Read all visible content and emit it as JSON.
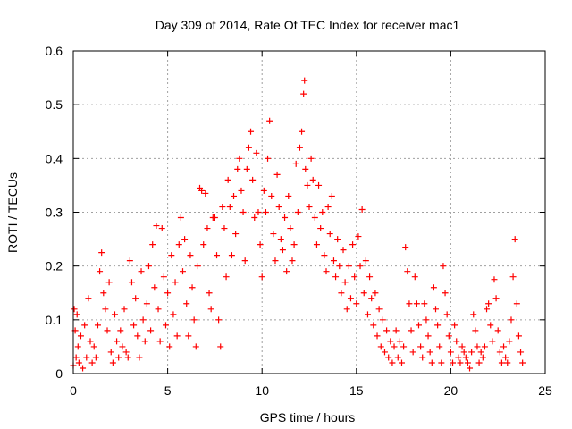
{
  "chart_data": {
    "type": "scatter",
    "title": "Day 309 of 2014, Rate Of TEC Index for receiver mac1",
    "xlabel": "GPS time / hours",
    "ylabel": "ROTI / TECUs",
    "xlim": [
      0,
      25
    ],
    "ylim": [
      0,
      0.6
    ],
    "xticks": [
      "0",
      "5",
      "10",
      "15",
      "20",
      "25"
    ],
    "yticks": [
      "0",
      "0.1",
      "0.2",
      "0.3",
      "0.4",
      "0.5",
      "0.6"
    ],
    "grid": true,
    "marker": "+",
    "color": "#ff0000",
    "series": [
      {
        "points": [
          [
            0.0,
            0.015
          ],
          [
            0.05,
            0.12
          ],
          [
            0.1,
            0.08
          ],
          [
            0.15,
            0.03
          ],
          [
            0.2,
            0.11
          ],
          [
            0.25,
            0.05
          ],
          [
            0.3,
            0.02
          ],
          [
            0.4,
            0.07
          ],
          [
            0.5,
            0.01
          ],
          [
            0.6,
            0.09
          ],
          [
            0.7,
            0.03
          ],
          [
            0.8,
            0.14
          ],
          [
            0.9,
            0.06
          ],
          [
            1.0,
            0.02
          ],
          [
            1.1,
            0.05
          ],
          [
            1.2,
            0.03
          ],
          [
            1.3,
            0.09
          ],
          [
            1.4,
            0.19
          ],
          [
            1.5,
            0.225
          ],
          [
            1.6,
            0.15
          ],
          [
            1.7,
            0.12
          ],
          [
            1.8,
            0.08
          ],
          [
            1.9,
            0.17
          ],
          [
            2.0,
            0.04
          ],
          [
            2.1,
            0.02
          ],
          [
            2.2,
            0.11
          ],
          [
            2.3,
            0.06
          ],
          [
            2.4,
            0.03
          ],
          [
            2.5,
            0.08
          ],
          [
            2.6,
            0.05
          ],
          [
            2.7,
            0.12
          ],
          [
            2.8,
            0.04
          ],
          [
            2.9,
            0.03
          ],
          [
            3.0,
            0.21
          ],
          [
            3.1,
            0.17
          ],
          [
            3.2,
            0.09
          ],
          [
            3.3,
            0.14
          ],
          [
            3.4,
            0.07
          ],
          [
            3.5,
            0.03
          ],
          [
            3.6,
            0.19
          ],
          [
            3.7,
            0.1
          ],
          [
            3.8,
            0.06
          ],
          [
            3.9,
            0.13
          ],
          [
            4.0,
            0.2
          ],
          [
            4.1,
            0.08
          ],
          [
            4.2,
            0.24
          ],
          [
            4.3,
            0.16
          ],
          [
            4.4,
            0.275
          ],
          [
            4.5,
            0.12
          ],
          [
            4.6,
            0.06
          ],
          [
            4.7,
            0.27
          ],
          [
            4.8,
            0.18
          ],
          [
            4.9,
            0.09
          ],
          [
            5.0,
            0.15
          ],
          [
            5.1,
            0.05
          ],
          [
            5.2,
            0.22
          ],
          [
            5.3,
            0.11
          ],
          [
            5.4,
            0.17
          ],
          [
            5.5,
            0.07
          ],
          [
            5.6,
            0.24
          ],
          [
            5.7,
            0.29
          ],
          [
            5.8,
            0.19
          ],
          [
            5.9,
            0.25
          ],
          [
            6.0,
            0.13
          ],
          [
            6.1,
            0.07
          ],
          [
            6.2,
            0.22
          ],
          [
            6.3,
            0.16
          ],
          [
            6.4,
            0.1
          ],
          [
            6.5,
            0.05
          ],
          [
            6.6,
            0.2
          ],
          [
            6.7,
            0.345
          ],
          [
            6.8,
            0.34
          ],
          [
            6.9,
            0.24
          ],
          [
            7.0,
            0.335
          ],
          [
            7.1,
            0.27
          ],
          [
            7.2,
            0.15
          ],
          [
            7.3,
            0.12
          ],
          [
            7.4,
            0.29
          ],
          [
            7.5,
            0.29
          ],
          [
            7.6,
            0.22
          ],
          [
            7.7,
            0.1
          ],
          [
            7.8,
            0.05
          ],
          [
            7.9,
            0.31
          ],
          [
            8.0,
            0.27
          ],
          [
            8.1,
            0.18
          ],
          [
            8.2,
            0.36
          ],
          [
            8.3,
            0.31
          ],
          [
            8.4,
            0.22
          ],
          [
            8.5,
            0.33
          ],
          [
            8.6,
            0.26
          ],
          [
            8.7,
            0.38
          ],
          [
            8.8,
            0.4
          ],
          [
            8.9,
            0.34
          ],
          [
            9.0,
            0.3
          ],
          [
            9.1,
            0.21
          ],
          [
            9.2,
            0.38
          ],
          [
            9.3,
            0.42
          ],
          [
            9.4,
            0.45
          ],
          [
            9.5,
            0.36
          ],
          [
            9.6,
            0.29
          ],
          [
            9.7,
            0.41
          ],
          [
            9.8,
            0.3
          ],
          [
            9.9,
            0.24
          ],
          [
            10.0,
            0.18
          ],
          [
            10.1,
            0.34
          ],
          [
            10.2,
            0.3
          ],
          [
            10.3,
            0.4
          ],
          [
            10.4,
            0.47
          ],
          [
            10.5,
            0.33
          ],
          [
            10.6,
            0.26
          ],
          [
            10.7,
            0.21
          ],
          [
            10.8,
            0.37
          ],
          [
            10.9,
            0.31
          ],
          [
            11.0,
            0.25
          ],
          [
            11.1,
            0.23
          ],
          [
            11.2,
            0.29
          ],
          [
            11.3,
            0.19
          ],
          [
            11.4,
            0.33
          ],
          [
            11.5,
            0.27
          ],
          [
            11.6,
            0.21
          ],
          [
            11.7,
            0.24
          ],
          [
            11.8,
            0.39
          ],
          [
            11.9,
            0.3
          ],
          [
            12.0,
            0.42
          ],
          [
            12.1,
            0.45
          ],
          [
            12.2,
            0.52
          ],
          [
            12.25,
            0.545
          ],
          [
            12.3,
            0.38
          ],
          [
            12.4,
            0.35
          ],
          [
            12.5,
            0.31
          ],
          [
            12.6,
            0.4
          ],
          [
            12.7,
            0.36
          ],
          [
            12.8,
            0.29
          ],
          [
            12.9,
            0.24
          ],
          [
            13.0,
            0.35
          ],
          [
            13.1,
            0.27
          ],
          [
            13.2,
            0.3
          ],
          [
            13.3,
            0.22
          ],
          [
            13.4,
            0.19
          ],
          [
            13.5,
            0.31
          ],
          [
            13.6,
            0.26
          ],
          [
            13.7,
            0.33
          ],
          [
            13.8,
            0.21
          ],
          [
            13.9,
            0.18
          ],
          [
            14.0,
            0.25
          ],
          [
            14.1,
            0.2
          ],
          [
            14.2,
            0.15
          ],
          [
            14.3,
            0.23
          ],
          [
            14.4,
            0.17
          ],
          [
            14.5,
            0.12
          ],
          [
            14.6,
            0.2
          ],
          [
            14.7,
            0.14
          ],
          [
            14.8,
            0.24
          ],
          [
            14.9,
            0.18
          ],
          [
            15.0,
            0.13
          ],
          [
            15.1,
            0.255
          ],
          [
            15.2,
            0.2
          ],
          [
            15.3,
            0.305
          ],
          [
            15.4,
            0.15
          ],
          [
            15.5,
            0.21
          ],
          [
            15.6,
            0.11
          ],
          [
            15.7,
            0.18
          ],
          [
            15.8,
            0.14
          ],
          [
            15.9,
            0.09
          ],
          [
            16.0,
            0.15
          ],
          [
            16.1,
            0.07
          ],
          [
            16.2,
            0.12
          ],
          [
            16.3,
            0.05
          ],
          [
            16.4,
            0.1
          ],
          [
            16.5,
            0.04
          ],
          [
            16.6,
            0.08
          ],
          [
            16.7,
            0.03
          ],
          [
            16.8,
            0.06
          ],
          [
            16.9,
            0.02
          ],
          [
            17.0,
            0.05
          ],
          [
            17.1,
            0.08
          ],
          [
            17.2,
            0.03
          ],
          [
            17.3,
            0.06
          ],
          [
            17.4,
            0.02
          ],
          [
            17.5,
            0.05
          ],
          [
            17.6,
            0.235
          ],
          [
            17.7,
            0.19
          ],
          [
            17.8,
            0.13
          ],
          [
            17.9,
            0.08
          ],
          [
            18.0,
            0.04
          ],
          [
            18.1,
            0.18
          ],
          [
            18.2,
            0.13
          ],
          [
            18.3,
            0.09
          ],
          [
            18.4,
            0.05
          ],
          [
            18.5,
            0.03
          ],
          [
            18.6,
            0.13
          ],
          [
            18.7,
            0.1
          ],
          [
            18.8,
            0.07
          ],
          [
            18.9,
            0.04
          ],
          [
            19.0,
            0.02
          ],
          [
            19.1,
            0.16
          ],
          [
            19.2,
            0.12
          ],
          [
            19.3,
            0.09
          ],
          [
            19.4,
            0.05
          ],
          [
            19.5,
            0.02
          ],
          [
            19.6,
            0.2
          ],
          [
            19.7,
            0.15
          ],
          [
            19.8,
            0.11
          ],
          [
            19.9,
            0.07
          ],
          [
            20.0,
            0.04
          ],
          [
            20.1,
            0.02
          ],
          [
            20.2,
            0.09
          ],
          [
            20.3,
            0.06
          ],
          [
            20.4,
            0.03
          ],
          [
            20.5,
            0.02
          ],
          [
            20.6,
            0.05
          ],
          [
            20.7,
            0.04
          ],
          [
            20.8,
            0.03
          ],
          [
            20.9,
            0.02
          ],
          [
            21.0,
            0.01
          ],
          [
            21.1,
            0.04
          ],
          [
            21.2,
            0.11
          ],
          [
            21.3,
            0.08
          ],
          [
            21.4,
            0.05
          ],
          [
            21.5,
            0.02
          ],
          [
            21.6,
            0.04
          ],
          [
            21.7,
            0.03
          ],
          [
            21.8,
            0.05
          ],
          [
            21.9,
            0.12
          ],
          [
            22.0,
            0.13
          ],
          [
            22.1,
            0.09
          ],
          [
            22.2,
            0.06
          ],
          [
            22.3,
            0.175
          ],
          [
            22.4,
            0.14
          ],
          [
            22.5,
            0.08
          ],
          [
            22.6,
            0.04
          ],
          [
            22.7,
            0.02
          ],
          [
            22.8,
            0.05
          ],
          [
            22.9,
            0.03
          ],
          [
            23.0,
            0.02
          ],
          [
            23.1,
            0.06
          ],
          [
            23.2,
            0.1
          ],
          [
            23.3,
            0.18
          ],
          [
            23.4,
            0.25
          ],
          [
            23.5,
            0.13
          ],
          [
            23.6,
            0.07
          ],
          [
            23.7,
            0.04
          ],
          [
            23.8,
            0.02
          ]
        ]
      }
    ]
  }
}
